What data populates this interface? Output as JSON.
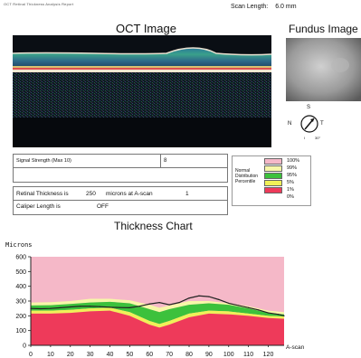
{
  "header": {
    "top_left_text": "OCT Retinal Thickness Analysis Report",
    "scan_length_label": "Scan Length:",
    "scan_length_value": "6.0 mm"
  },
  "oct": {
    "title": "OCT Image"
  },
  "fundus": {
    "title": "Fundus Image",
    "compass": {
      "north": "N",
      "south": "S",
      "temporal": "T",
      "inferior": "I",
      "angle": "30°"
    }
  },
  "signal": {
    "label": "Signal Strength (Max 10)",
    "value": "8"
  },
  "retinal_thickness": {
    "label": "Retinal Thickness is",
    "value": "250",
    "units_label": "microns at A-scan",
    "ascan": "1"
  },
  "caliper": {
    "label": "Caliper Length is",
    "value": "OFF"
  },
  "legend": {
    "title_lines": [
      "Normal",
      "Distribution",
      "Percentile"
    ],
    "entries": [
      {
        "label": "100%",
        "color": "#f5b8c8"
      },
      {
        "label": "99%",
        "color": "#f7f7a8"
      },
      {
        "label": "95%",
        "color": "#3cc13c"
      },
      {
        "label": "5%",
        "color": "#f0f058"
      },
      {
        "label": "1%",
        "color": "#ee3a5a"
      },
      {
        "label": "0%",
        "color": "#ffffff"
      }
    ]
  },
  "chart_data": {
    "type": "area",
    "title": "Thickness Chart",
    "ylabel": "Microns",
    "xlabel": "A-scan",
    "xlim": [
      0,
      128
    ],
    "ylim": [
      0,
      600
    ],
    "x_ticks": [
      0,
      10,
      20,
      30,
      40,
      50,
      60,
      70,
      80,
      90,
      100,
      110,
      120
    ],
    "y_ticks": [
      0,
      100,
      200,
      300,
      400,
      500,
      600
    ],
    "bands_x": [
      0,
      10,
      20,
      30,
      40,
      50,
      60,
      65,
      70,
      80,
      90,
      100,
      110,
      120,
      128
    ],
    "band_1pct": [
      215,
      215,
      220,
      230,
      235,
      200,
      140,
      120,
      140,
      190,
      215,
      210,
      200,
      185,
      180
    ],
    "band_5pct": [
      235,
      235,
      240,
      250,
      255,
      225,
      165,
      145,
      165,
      215,
      235,
      230,
      215,
      200,
      195
    ],
    "band_95pct": [
      270,
      272,
      280,
      290,
      295,
      285,
      245,
      225,
      245,
      275,
      285,
      275,
      250,
      220,
      210
    ],
    "band_99pct": [
      290,
      292,
      300,
      315,
      315,
      305,
      275,
      255,
      270,
      300,
      300,
      285,
      265,
      235,
      225
    ],
    "series": [
      {
        "name": "",
        "x": [
          0,
          5,
          10,
          15,
          20,
          25,
          30,
          35,
          40,
          45,
          50,
          55,
          60,
          65,
          70,
          75,
          80,
          85,
          90,
          95,
          100,
          105,
          110,
          115,
          120,
          125,
          128
        ],
        "values": [
          250,
          248,
          250,
          255,
          260,
          265,
          265,
          262,
          258,
          256,
          255,
          265,
          280,
          290,
          275,
          290,
          320,
          335,
          330,
          310,
          285,
          270,
          255,
          240,
          220,
          210,
          200
        ]
      }
    ]
  }
}
